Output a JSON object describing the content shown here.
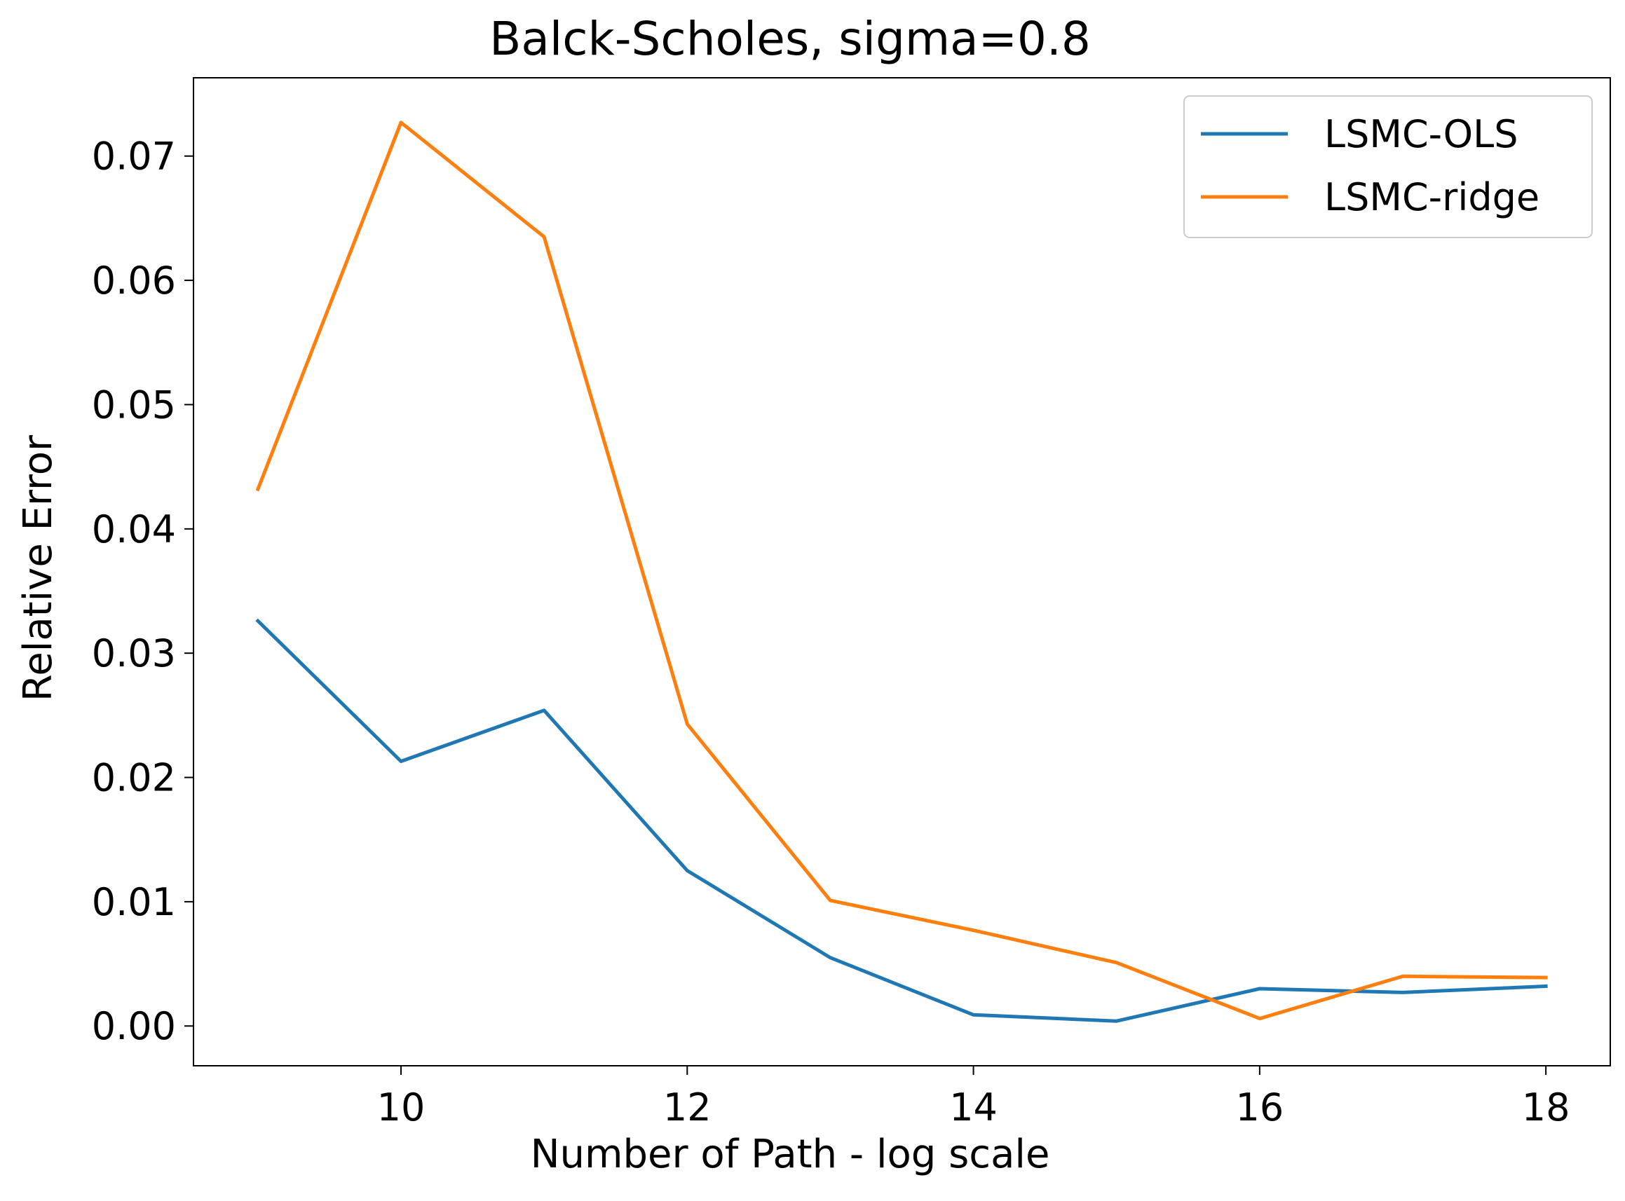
{
  "chart_data": {
    "type": "line",
    "title": "Balck-Scholes, sigma=0.8",
    "xlabel": "Number of Path - log scale",
    "ylabel": "Relative Error",
    "x": [
      9,
      10,
      11,
      12,
      13,
      14,
      15,
      16,
      17,
      18
    ],
    "xlim": [
      8.55,
      18.45
    ],
    "ylim": [
      -0.0032,
      0.0763
    ],
    "xticks": [
      10,
      12,
      14,
      16,
      18
    ],
    "xtick_labels": [
      "10",
      "12",
      "14",
      "16",
      "18"
    ],
    "yticks": [
      0.0,
      0.01,
      0.02,
      0.03,
      0.04,
      0.05,
      0.06,
      0.07
    ],
    "ytick_labels": [
      "0.00",
      "0.01",
      "0.02",
      "0.03",
      "0.04",
      "0.05",
      "0.06",
      "0.07"
    ],
    "grid": false,
    "legend_position": "top-right",
    "series": [
      {
        "name": "LSMC-OLS",
        "color": "#1f77b4",
        "values": [
          0.0326,
          0.0213,
          0.0254,
          0.0125,
          0.0055,
          0.0009,
          0.0004,
          0.003,
          0.0027,
          0.0032
        ]
      },
      {
        "name": "LSMC-ridge",
        "color": "#ff7f0e",
        "values": [
          0.0432,
          0.0727,
          0.0635,
          0.0243,
          0.0101,
          0.0077,
          0.0051,
          0.0006,
          0.004,
          0.0039
        ]
      }
    ]
  }
}
